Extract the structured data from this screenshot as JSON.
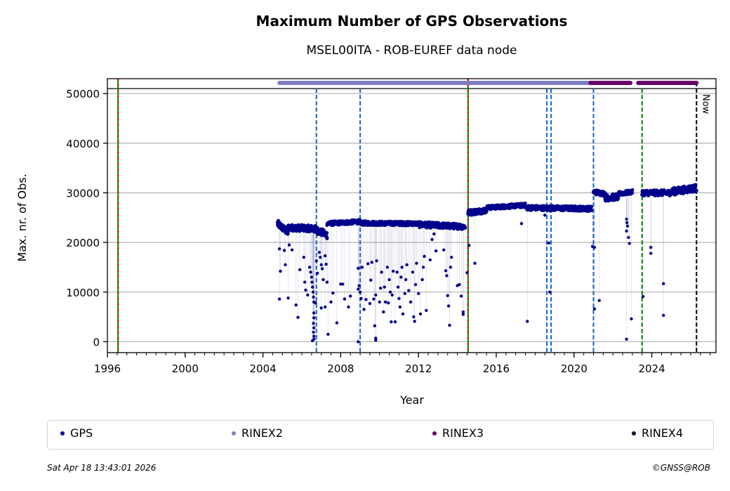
{
  "chart_data": {
    "type": "scatter",
    "title": "Maximum Number of GPS Observations",
    "subtitle": "MSEL00ITA - ROB-EUREF data node",
    "xlabel": "Year",
    "ylabel": "Max. nr. of Obs.",
    "xlim": [
      1996.0,
      2027.3
    ],
    "ylim": [
      -2200,
      53000
    ],
    "x_ticks": [
      1996,
      2000,
      2004,
      2008,
      2012,
      2016,
      2020,
      2024
    ],
    "x_tick_labels": [
      "1996",
      "2000",
      "2004",
      "2008",
      "2012",
      "2016",
      "2020",
      "2024"
    ],
    "x_minor_step": 0.5,
    "y_ticks": [
      0,
      10000,
      20000,
      30000,
      40000,
      50000
    ],
    "y_tick_labels": [
      "0",
      "10000",
      "20000",
      "30000",
      "40000",
      "50000"
    ],
    "grid": "y",
    "ref_hline": 51000,
    "colors": {
      "gps": "#00008b",
      "rinex2": "#7f7fbf",
      "rinex3": "#660066",
      "rinex4": "#1a0026",
      "blue_event": "#1565c0",
      "green_event": "#008000",
      "red_event": "#e00000",
      "now": "#000000",
      "grid": "#b0b0b0"
    },
    "series": [
      {
        "name": "GPS",
        "kind": "daily-max",
        "baseline_segments": [
          {
            "x0": 2004.75,
            "x1": 2005.3,
            "y0": 23800,
            "y1": 22000,
            "noise": 900
          },
          {
            "x0": 2005.3,
            "x1": 2006.6,
            "y0": 23000,
            "y1": 22800,
            "noise": 800
          },
          {
            "x0": 2006.6,
            "x1": 2007.3,
            "y0": 22800,
            "y1": 21500,
            "noise": 900
          },
          {
            "x0": 2007.3,
            "x1": 2009.0,
            "y0": 23800,
            "y1": 24200,
            "noise": 500
          },
          {
            "x0": 2009.0,
            "x1": 2012.0,
            "y0": 23900,
            "y1": 23800,
            "noise": 500
          },
          {
            "x0": 2012.0,
            "x1": 2014.4,
            "y0": 23600,
            "y1": 23200,
            "noise": 700
          },
          {
            "x0": 2014.55,
            "x1": 2015.5,
            "y0": 26000,
            "y1": 26500,
            "noise": 700
          },
          {
            "x0": 2015.5,
            "x1": 2017.5,
            "y0": 27000,
            "y1": 27500,
            "noise": 500
          },
          {
            "x0": 2017.5,
            "x1": 2020.9,
            "y0": 27000,
            "y1": 26800,
            "noise": 600
          },
          {
            "x0": 2021.0,
            "x1": 2021.6,
            "y0": 30200,
            "y1": 29800,
            "noise": 600
          },
          {
            "x0": 2021.6,
            "x1": 2022.3,
            "y0": 29000,
            "y1": 29200,
            "noise": 800
          },
          {
            "x0": 2022.3,
            "x1": 2023.0,
            "y0": 29800,
            "y1": 30200,
            "noise": 500
          },
          {
            "x0": 2023.5,
            "x1": 2025.0,
            "y0": 30000,
            "y1": 30000,
            "noise": 700
          },
          {
            "x0": 2025.0,
            "x1": 2026.3,
            "y0": 30200,
            "y1": 31000,
            "noise": 900
          }
        ],
        "outliers": [
          [
            2004.85,
            18700
          ],
          [
            2004.9,
            14200
          ],
          [
            2004.85,
            8600
          ],
          [
            2005.1,
            18400
          ],
          [
            2005.15,
            15500
          ],
          [
            2005.3,
            8800
          ],
          [
            2005.35,
            19500
          ],
          [
            2005.5,
            18500
          ],
          [
            2005.7,
            7400
          ],
          [
            2005.8,
            4900
          ],
          [
            2005.9,
            14500
          ],
          [
            2006.1,
            17000
          ],
          [
            2006.15,
            12000
          ],
          [
            2006.2,
            10400
          ],
          [
            2006.3,
            9400
          ],
          [
            2006.4,
            15000
          ],
          [
            2006.45,
            14000
          ],
          [
            2006.5,
            13000
          ],
          [
            2006.52,
            12000
          ],
          [
            2006.55,
            11000
          ],
          [
            2006.58,
            10000
          ],
          [
            2006.6,
            9000
          ],
          [
            2006.62,
            8000
          ],
          [
            2006.62,
            5800
          ],
          [
            2006.62,
            4800
          ],
          [
            2006.6,
            3700
          ],
          [
            2006.62,
            2800
          ],
          [
            2006.6,
            1900
          ],
          [
            2006.62,
            1100
          ],
          [
            2006.62,
            500
          ],
          [
            2006.55,
            200
          ],
          [
            2006.7,
            7800
          ],
          [
            2006.75,
            16300
          ],
          [
            2006.8,
            13800
          ],
          [
            2006.9,
            18000
          ],
          [
            2006.95,
            17000
          ],
          [
            2007.0,
            15500
          ],
          [
            2007.05,
            14700
          ],
          [
            2007.1,
            12500
          ],
          [
            2007.0,
            6800
          ],
          [
            2007.2,
            17300
          ],
          [
            2007.25,
            15600
          ],
          [
            2007.2,
            7000
          ],
          [
            2007.3,
            12000
          ],
          [
            2007.35,
            1500
          ],
          [
            2007.5,
            8000
          ],
          [
            2007.6,
            9800
          ],
          [
            2007.8,
            3800
          ],
          [
            2008.0,
            11600
          ],
          [
            2008.1,
            11600
          ],
          [
            2008.2,
            8600
          ],
          [
            2008.4,
            7000
          ],
          [
            2008.5,
            9200
          ],
          [
            2008.9,
            14800
          ],
          [
            2008.95,
            11300
          ],
          [
            2008.9,
            10600
          ],
          [
            2009.0,
            10000
          ],
          [
            2009.05,
            8700
          ],
          [
            2008.9,
            0
          ],
          [
            2009.1,
            15000
          ],
          [
            2009.2,
            6500
          ],
          [
            2009.3,
            8500
          ],
          [
            2009.4,
            15700
          ],
          [
            2009.5,
            7700
          ],
          [
            2009.55,
            12400
          ],
          [
            2009.6,
            16000
          ],
          [
            2009.7,
            8600
          ],
          [
            2009.75,
            3200
          ],
          [
            2009.8,
            9400
          ],
          [
            2009.85,
            16300
          ],
          [
            2009.8,
            700
          ],
          [
            2009.8,
            300
          ],
          [
            2010.0,
            8000
          ],
          [
            2010.05,
            10800
          ],
          [
            2010.1,
            14000
          ],
          [
            2010.2,
            6000
          ],
          [
            2010.25,
            11000
          ],
          [
            2010.3,
            8000
          ],
          [
            2010.4,
            15000
          ],
          [
            2010.45,
            7800
          ],
          [
            2010.5,
            12500
          ],
          [
            2010.55,
            10000
          ],
          [
            2010.6,
            4000
          ],
          [
            2010.65,
            9400
          ],
          [
            2010.7,
            14200
          ],
          [
            2010.8,
            4000
          ],
          [
            2010.9,
            14000
          ],
          [
            2010.95,
            11000
          ],
          [
            2011.0,
            8700
          ],
          [
            2011.05,
            7000
          ],
          [
            2011.1,
            13000
          ],
          [
            2011.15,
            15000
          ],
          [
            2011.2,
            5600
          ],
          [
            2011.3,
            9700
          ],
          [
            2011.35,
            12500
          ],
          [
            2011.4,
            15500
          ],
          [
            2011.5,
            10300
          ],
          [
            2011.6,
            8000
          ],
          [
            2011.7,
            14000
          ],
          [
            2011.75,
            5000
          ],
          [
            2011.8,
            4100
          ],
          [
            2011.85,
            11500
          ],
          [
            2011.9,
            15800
          ],
          [
            2012.0,
            9700
          ],
          [
            2012.1,
            5600
          ],
          [
            2012.2,
            12500
          ],
          [
            2012.25,
            15000
          ],
          [
            2012.3,
            17200
          ],
          [
            2012.4,
            6300
          ],
          [
            2012.6,
            16500
          ],
          [
            2012.7,
            20600
          ],
          [
            2012.8,
            21700
          ],
          [
            2012.9,
            18300
          ],
          [
            2013.3,
            18500
          ],
          [
            2013.4,
            14300
          ],
          [
            2013.45,
            13300
          ],
          [
            2013.5,
            9300
          ],
          [
            2013.55,
            7200
          ],
          [
            2013.6,
            3300
          ],
          [
            2013.65,
            15000
          ],
          [
            2013.7,
            17000
          ],
          [
            2014.0,
            11300
          ],
          [
            2014.1,
            11500
          ],
          [
            2014.2,
            9200
          ],
          [
            2014.3,
            6000
          ],
          [
            2014.3,
            5500
          ],
          [
            2014.5,
            13900
          ],
          [
            2014.6,
            19400
          ],
          [
            2014.9,
            15800
          ],
          [
            2017.3,
            23800
          ],
          [
            2017.6,
            4100
          ],
          [
            2018.5,
            25500
          ],
          [
            2018.7,
            19900
          ],
          [
            2018.75,
            10000
          ],
          [
            2020.95,
            19200
          ],
          [
            2021.05,
            19000
          ],
          [
            2021.05,
            6600
          ],
          [
            2021.3,
            8300
          ],
          [
            2022.7,
            24700
          ],
          [
            2022.72,
            24000
          ],
          [
            2022.75,
            23300
          ],
          [
            2022.7,
            22300
          ],
          [
            2022.8,
            21000
          ],
          [
            2022.85,
            19800
          ],
          [
            2022.7,
            500
          ],
          [
            2022.95,
            4600
          ],
          [
            2023.55,
            9100
          ],
          [
            2023.95,
            19000
          ],
          [
            2023.95,
            17800
          ],
          [
            2024.6,
            11700
          ],
          [
            2024.6,
            5300
          ]
        ]
      },
      {
        "name": "RINEX2",
        "kind": "availability-bar",
        "ranges": [
          [
            2004.85,
            2020.85
          ]
        ]
      },
      {
        "name": "RINEX3",
        "kind": "availability-bar",
        "ranges": [
          [
            2020.85,
            2022.9
          ],
          [
            2023.3,
            2026.3
          ]
        ]
      },
      {
        "name": "RINEX4",
        "kind": "availability-bar",
        "ranges": []
      }
    ],
    "event_lines": [
      {
        "x": 1996.55,
        "type": "red-green"
      },
      {
        "x": 2006.75,
        "type": "blue"
      },
      {
        "x": 2009.0,
        "type": "blue"
      },
      {
        "x": 2014.55,
        "type": "red-green"
      },
      {
        "x": 2018.6,
        "type": "blue"
      },
      {
        "x": 2018.82,
        "type": "blue"
      },
      {
        "x": 2021.0,
        "type": "blue"
      },
      {
        "x": 2023.5,
        "type": "green"
      },
      {
        "x": 2026.3,
        "type": "now",
        "label": "Now"
      }
    ],
    "legend": {
      "placement": "below",
      "entries": [
        "GPS",
        "RINEX2",
        "RINEX3",
        "RINEX4"
      ]
    }
  },
  "footer": {
    "timestamp": "Sat Apr 18 13:43:01 2026",
    "credit": "©GNSS@ROB"
  }
}
